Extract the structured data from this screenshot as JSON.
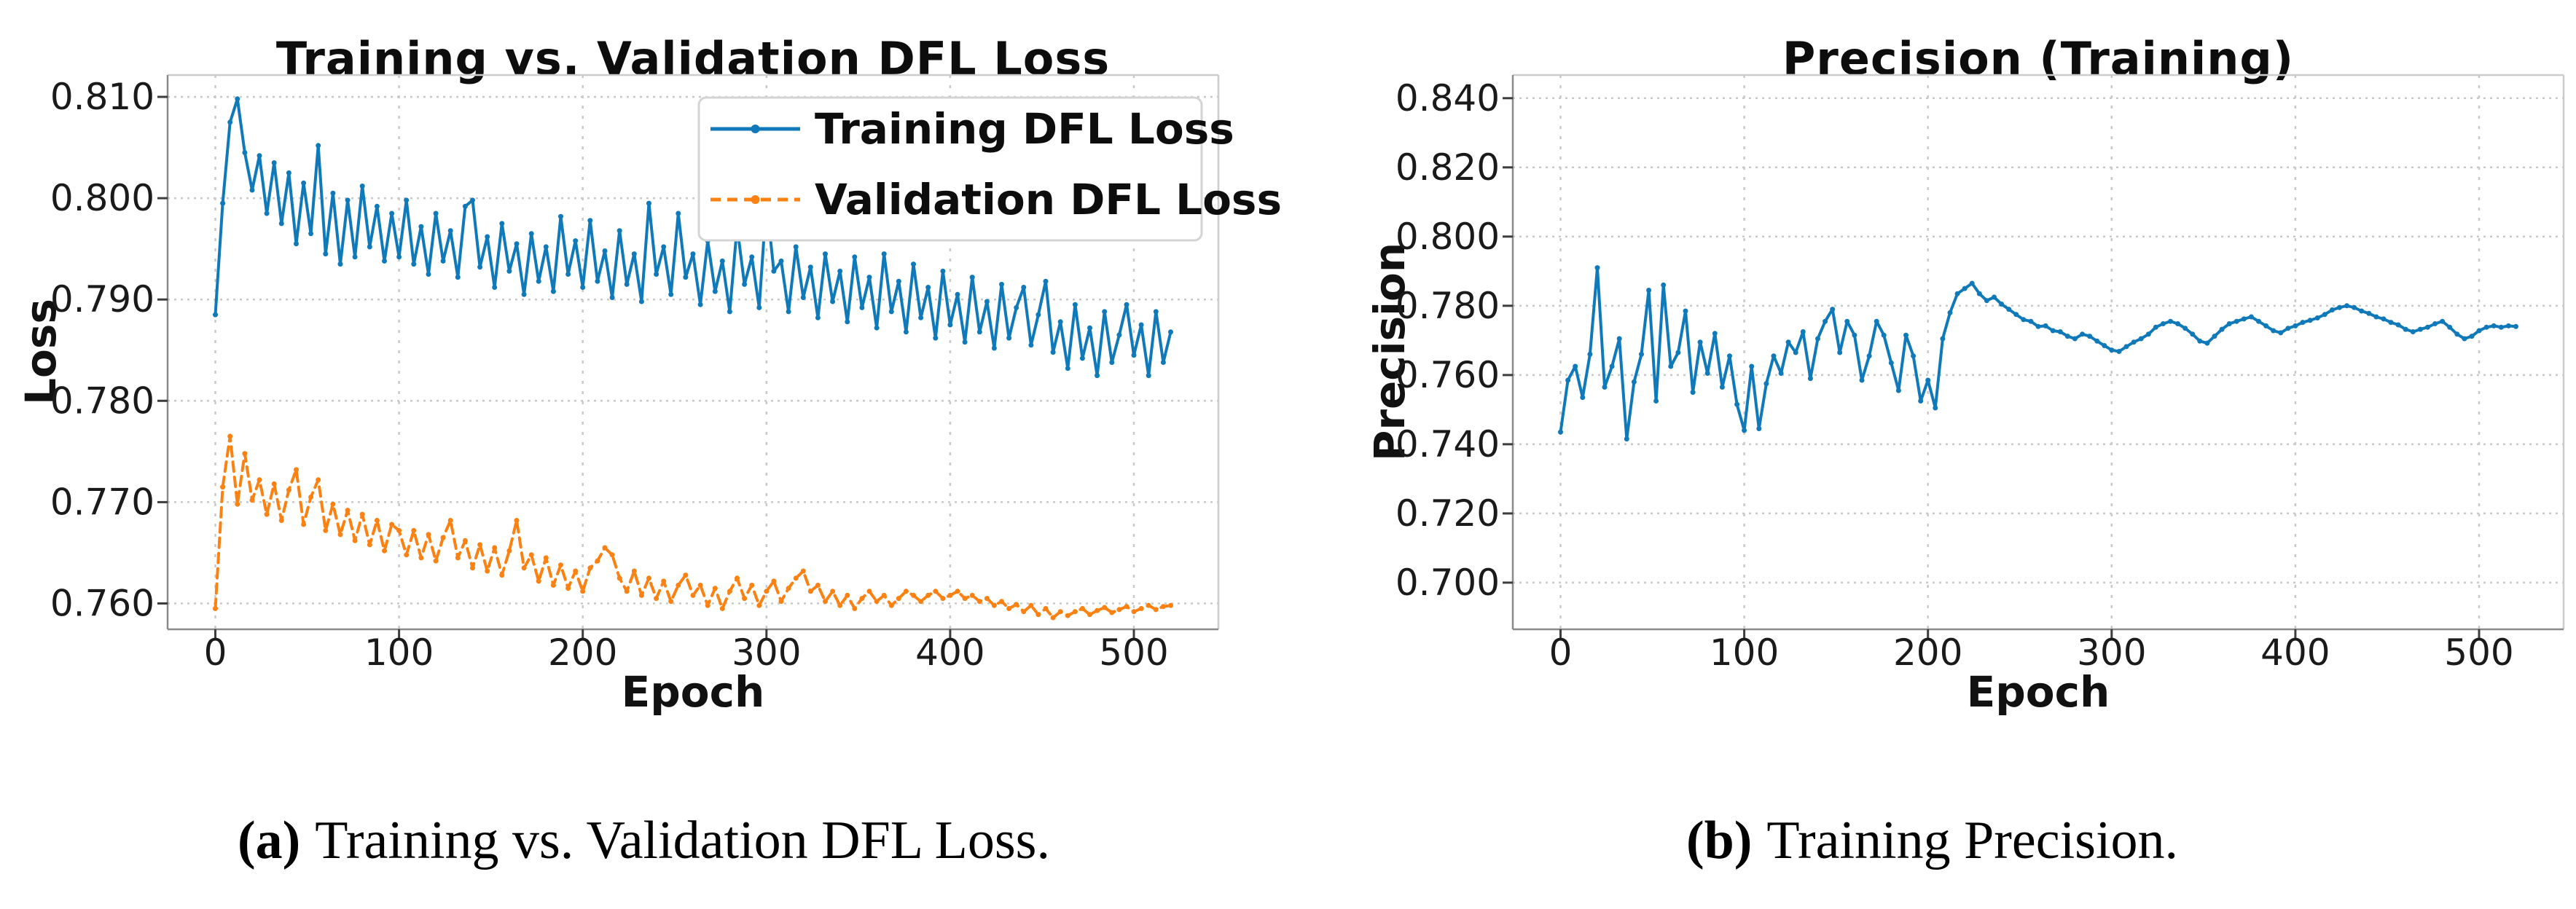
{
  "figure": {
    "captions": [
      {
        "label": "(a)",
        "text": "Training vs. Validation DFL Loss."
      },
      {
        "label": "(b)",
        "text": "Training Precision."
      }
    ]
  },
  "colors": {
    "blue": "#0f79b9",
    "orange": "#fb8212",
    "grid": "#c9c9c9",
    "spine_light": "#cccccc",
    "spine_dark": "#8a8a8a",
    "tick": "#3d3d3d",
    "text": "#1a1a1a",
    "legend_border": "#d4d4d4",
    "background": "#ffffff"
  },
  "chart_data": [
    {
      "type": "line",
      "title": "Training vs. Validation DFL Loss",
      "xlabel": "Epoch",
      "ylabel": "Loss",
      "xlim": [
        -26,
        546
      ],
      "ylim": [
        0.75745,
        0.81216
      ],
      "xticks": [
        0,
        100,
        200,
        300,
        400,
        500
      ],
      "xtick_labels": [
        "0",
        "100",
        "200",
        "300",
        "400",
        "500"
      ],
      "yticks": [
        0.76,
        0.77,
        0.78,
        0.79,
        0.8,
        0.81
      ],
      "ytick_labels": [
        "0.760",
        "0.770",
        "0.780",
        "0.790",
        "0.800",
        "0.810"
      ],
      "grid": true,
      "legend": {
        "position": "upper right"
      },
      "x_start": 0,
      "x_step": 4,
      "series": [
        {
          "id": "training_dfl_loss",
          "name": "Training DFL Loss",
          "color": "#0f79b9",
          "style": "solid",
          "values": [
            0.7885,
            0.7995,
            0.8075,
            0.8098,
            0.8045,
            0.8008,
            0.8042,
            0.7985,
            0.8035,
            0.7975,
            0.8025,
            0.7955,
            0.8015,
            0.7965,
            0.8052,
            0.7945,
            0.8005,
            0.7935,
            0.7998,
            0.7942,
            0.8012,
            0.7952,
            0.7992,
            0.7938,
            0.7985,
            0.7942,
            0.7998,
            0.7935,
            0.7972,
            0.7925,
            0.7985,
            0.7938,
            0.7968,
            0.7922,
            0.7992,
            0.7998,
            0.7932,
            0.7962,
            0.7912,
            0.7975,
            0.7928,
            0.7955,
            0.7905,
            0.7965,
            0.7918,
            0.7952,
            0.7908,
            0.7982,
            0.7925,
            0.7958,
            0.7912,
            0.7978,
            0.7918,
            0.7948,
            0.7902,
            0.7968,
            0.7915,
            0.7945,
            0.7898,
            0.7995,
            0.7925,
            0.7952,
            0.7905,
            0.7985,
            0.7922,
            0.7945,
            0.7895,
            0.7958,
            0.7908,
            0.7938,
            0.7888,
            0.7972,
            0.7915,
            0.7942,
            0.7892,
            0.7998,
            0.7928,
            0.7938,
            0.7888,
            0.7952,
            0.7902,
            0.7932,
            0.7882,
            0.7945,
            0.7898,
            0.7928,
            0.7878,
            0.7942,
            0.7892,
            0.7922,
            0.7872,
            0.7945,
            0.7888,
            0.7918,
            0.7868,
            0.7935,
            0.7882,
            0.7912,
            0.7862,
            0.7928,
            0.7875,
            0.7905,
            0.7858,
            0.7922,
            0.7868,
            0.7898,
            0.7852,
            0.7915,
            0.7862,
            0.7892,
            0.7912,
            0.7855,
            0.7885,
            0.7918,
            0.7848,
            0.7878,
            0.7832,
            0.7895,
            0.7842,
            0.7872,
            0.7825,
            0.7888,
            0.7838,
            0.7865,
            0.7895,
            0.7845,
            0.7875,
            0.7825,
            0.7888,
            0.7838,
            0.7868
          ]
        },
        {
          "id": "validation_dfl_loss",
          "name": "Validation DFL Loss",
          "color": "#fb8212",
          "style": "dashed",
          "values": [
            0.7595,
            0.7715,
            0.7765,
            0.7698,
            0.7748,
            0.7702,
            0.7722,
            0.7688,
            0.7718,
            0.7682,
            0.7712,
            0.7732,
            0.7678,
            0.7705,
            0.7722,
            0.7672,
            0.7698,
            0.7668,
            0.7692,
            0.7662,
            0.7688,
            0.7658,
            0.7682,
            0.7652,
            0.7678,
            0.7672,
            0.7648,
            0.7672,
            0.7645,
            0.7668,
            0.7642,
            0.7665,
            0.7682,
            0.7645,
            0.7662,
            0.7635,
            0.7658,
            0.7632,
            0.7655,
            0.7628,
            0.7652,
            0.7682,
            0.7635,
            0.7648,
            0.7622,
            0.7645,
            0.7618,
            0.7638,
            0.7615,
            0.7632,
            0.7612,
            0.7635,
            0.7642,
            0.7655,
            0.7648,
            0.7625,
            0.7612,
            0.7632,
            0.7608,
            0.7625,
            0.7605,
            0.7622,
            0.7602,
            0.7618,
            0.7628,
            0.7608,
            0.7618,
            0.7598,
            0.7615,
            0.7595,
            0.7612,
            0.7625,
            0.7605,
            0.7618,
            0.7598,
            0.7612,
            0.7622,
            0.7602,
            0.7615,
            0.7625,
            0.7632,
            0.7612,
            0.7618,
            0.7602,
            0.7612,
            0.7598,
            0.7608,
            0.7595,
            0.7605,
            0.7612,
            0.7602,
            0.7608,
            0.7598,
            0.7605,
            0.7612,
            0.7608,
            0.7602,
            0.7608,
            0.7612,
            0.7605,
            0.7608,
            0.7612,
            0.7605,
            0.7608,
            0.7602,
            0.7605,
            0.7598,
            0.7602,
            0.7595,
            0.7599,
            0.7592,
            0.7598,
            0.7589,
            0.7595,
            0.7586,
            0.7592,
            0.7588,
            0.7592,
            0.7595,
            0.7589,
            0.7593,
            0.7596,
            0.7591,
            0.7594,
            0.7597,
            0.7592,
            0.7595,
            0.7598,
            0.7594,
            0.7597,
            0.7598
          ]
        }
      ]
    },
    {
      "type": "line",
      "title": "Precision (Training)",
      "xlabel": "Epoch",
      "ylabel": "Precision",
      "xlim": [
        -26,
        546
      ],
      "ylim": [
        0.6865,
        0.8467
      ],
      "xticks": [
        0,
        100,
        200,
        300,
        400,
        500
      ],
      "xtick_labels": [
        "0",
        "100",
        "200",
        "300",
        "400",
        "500"
      ],
      "yticks": [
        0.7,
        0.72,
        0.74,
        0.76,
        0.78,
        0.8,
        0.82,
        0.84
      ],
      "ytick_labels": [
        "0.700",
        "0.720",
        "0.740",
        "0.760",
        "0.780",
        "0.800",
        "0.820",
        "0.840"
      ],
      "grid": true,
      "legend": null,
      "x_start": 0,
      "x_step": 4,
      "series": [
        {
          "id": "precision",
          "name": "Precision",
          "color": "#0f79b9",
          "style": "solid",
          "values": [
            0.7435,
            0.7585,
            0.7625,
            0.7535,
            0.766,
            0.791,
            0.7565,
            0.7625,
            0.7705,
            0.7415,
            0.758,
            0.766,
            0.7845,
            0.7525,
            0.786,
            0.7625,
            0.7665,
            0.7785,
            0.755,
            0.7695,
            0.7605,
            0.772,
            0.7565,
            0.7655,
            0.7515,
            0.744,
            0.7625,
            0.7445,
            0.7575,
            0.7655,
            0.7605,
            0.7695,
            0.7665,
            0.7725,
            0.759,
            0.7705,
            0.7755,
            0.779,
            0.7665,
            0.7755,
            0.7715,
            0.7585,
            0.7655,
            0.7755,
            0.7715,
            0.7635,
            0.7555,
            0.7715,
            0.7655,
            0.7525,
            0.7585,
            0.7505,
            0.7705,
            0.778,
            0.7835,
            0.785,
            0.7865,
            0.7835,
            0.7815,
            0.7825,
            0.7805,
            0.779,
            0.7775,
            0.776,
            0.7755,
            0.774,
            0.7742,
            0.7728,
            0.7725,
            0.7712,
            0.7705,
            0.7718,
            0.7712,
            0.7698,
            0.7685,
            0.7672,
            0.7668,
            0.7682,
            0.7695,
            0.7705,
            0.7718,
            0.7738,
            0.7748,
            0.7755,
            0.7748,
            0.7735,
            0.7718,
            0.7698,
            0.7692,
            0.7712,
            0.7732,
            0.7748,
            0.7755,
            0.7762,
            0.7768,
            0.7755,
            0.7742,
            0.7728,
            0.7722,
            0.7735,
            0.7742,
            0.7752,
            0.7758,
            0.7765,
            0.7775,
            0.7788,
            0.7795,
            0.78,
            0.7795,
            0.7785,
            0.7778,
            0.7768,
            0.7762,
            0.7752,
            0.7745,
            0.7732,
            0.7725,
            0.7732,
            0.7738,
            0.7748,
            0.7755,
            0.7738,
            0.7718,
            0.7705,
            0.7712,
            0.7728,
            0.7738,
            0.7742,
            0.7738,
            0.7742,
            0.774
          ]
        }
      ]
    }
  ]
}
